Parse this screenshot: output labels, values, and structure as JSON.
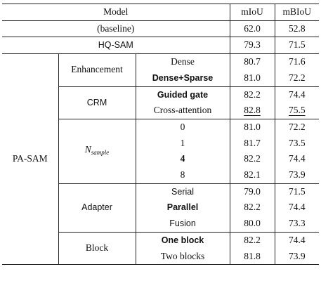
{
  "header": {
    "model": "Model",
    "miou": "mIoU",
    "mbiou": "mBIoU"
  },
  "baseline": {
    "label": "(baseline)",
    "miou": "62.0",
    "mbiou": "52.8"
  },
  "hqsam": {
    "label": "HQ-SAM",
    "miou": "79.3",
    "mbiou": "71.5"
  },
  "pasam": {
    "label": "PA-SAM",
    "groups": [
      {
        "label": "Enhancement",
        "rows": [
          {
            "variant": "Dense",
            "miou": "80.7",
            "mbiou": "71.6"
          },
          {
            "variant": "Dense+Sparse",
            "miou": "81.0",
            "mbiou": "72.2"
          }
        ]
      },
      {
        "label": "CRM",
        "rows": [
          {
            "variant": "Guided gate",
            "miou": "82.2",
            "mbiou": "74.4"
          },
          {
            "variant": "Cross-attention",
            "miou": "82.8",
            "mbiou": "75.5"
          }
        ]
      },
      {
        "label_main": "N",
        "label_sub": "sample",
        "rows": [
          {
            "variant": "0",
            "miou": "81.0",
            "mbiou": "72.2"
          },
          {
            "variant": "1",
            "miou": "81.7",
            "mbiou": "73.5"
          },
          {
            "variant": "4",
            "miou": "82.2",
            "mbiou": "74.4"
          },
          {
            "variant": "8",
            "miou": "82.1",
            "mbiou": "73.9"
          }
        ]
      },
      {
        "label": "Adapter",
        "rows": [
          {
            "variant": "Serial",
            "miou": "79.0",
            "mbiou": "71.5"
          },
          {
            "variant": "Parallel",
            "miou": "82.2",
            "mbiou": "74.4"
          },
          {
            "variant": "Fusion",
            "miou": "80.0",
            "mbiou": "73.3"
          }
        ]
      },
      {
        "label": "Block",
        "rows": [
          {
            "variant": "One block",
            "miou": "82.2",
            "mbiou": "74.4"
          },
          {
            "variant": "Two blocks",
            "miou": "81.8",
            "mbiou": "73.9"
          }
        ]
      }
    ]
  }
}
